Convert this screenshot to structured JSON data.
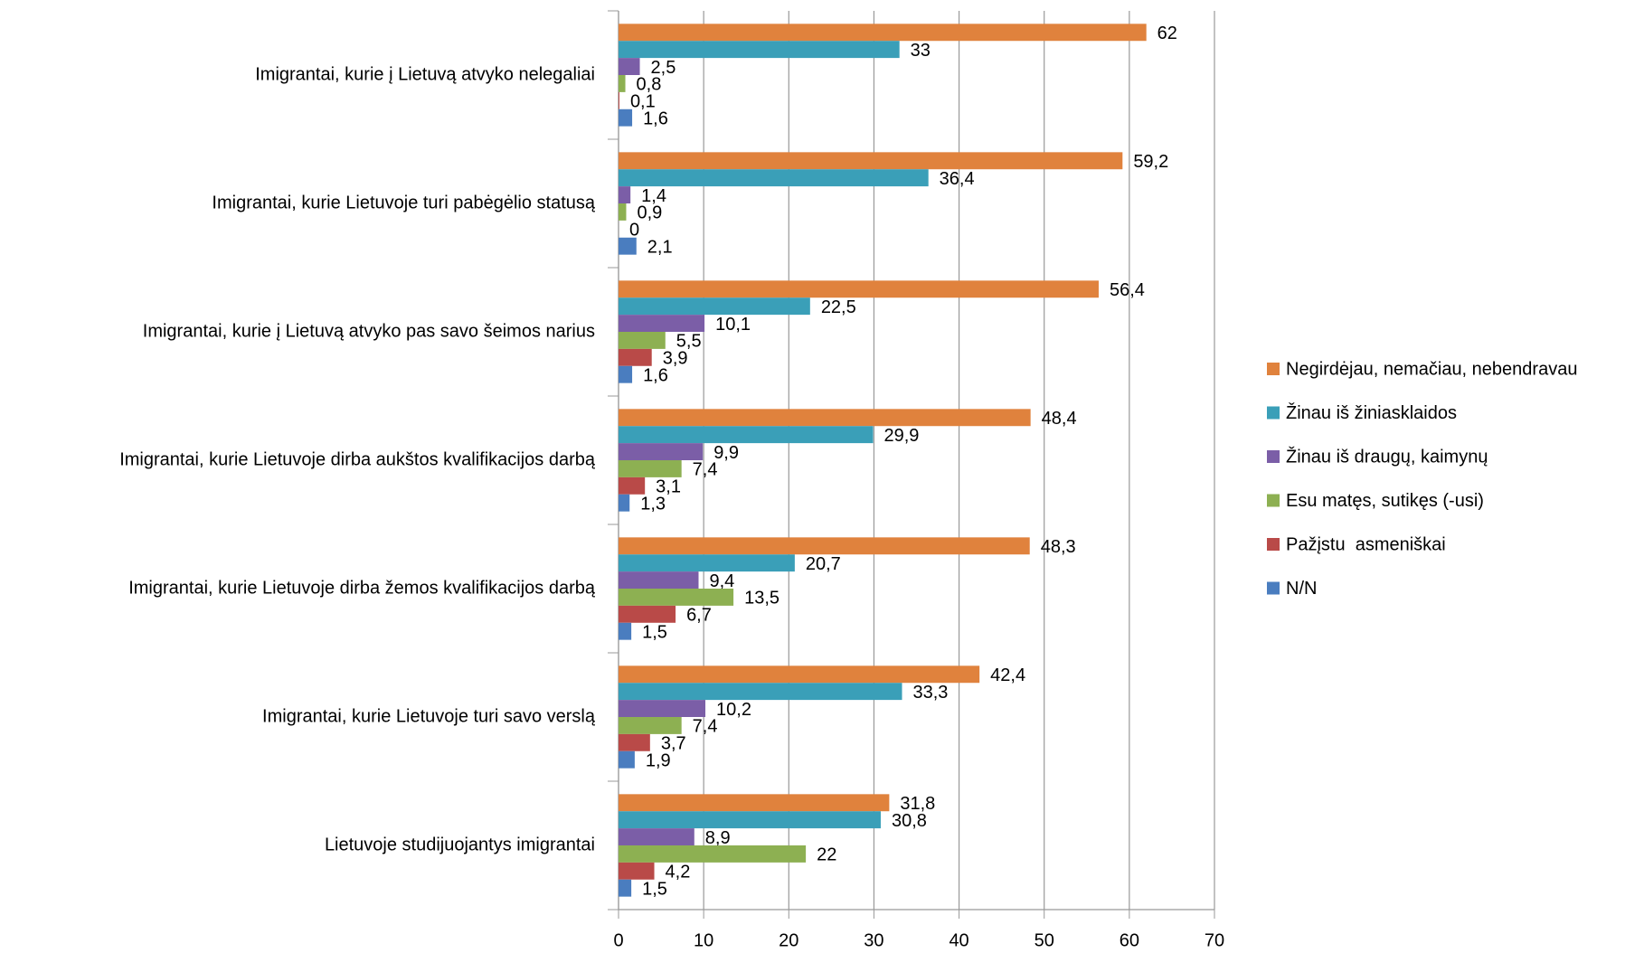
{
  "chart_data": {
    "type": "hbar",
    "categories": [
      "Imigrantai, kurie į Lietuvą atvyko nelegaliai",
      "Imigrantai, kurie Lietuvoje turi pabėgėlio statusą",
      "Imigrantai, kurie į Lietuvą atvyko pas savo šeimos narius",
      "Imigrantai, kurie Lietuvoje dirba aukštos kvalifikacijos darbą",
      "Imigrantai, kurie Lietuvoje dirba žemos kvalifikacijos darbą",
      "Imigrantai, kurie Lietuvoje turi savo verslą",
      "Lietuvoje studijuojantys imigrantai"
    ],
    "series": [
      {
        "name": "Negirdėjau, nemačiau, nebendravau",
        "color": "#e0823d",
        "values": [
          62,
          59.2,
          56.4,
          48.4,
          48.3,
          42.4,
          31.8
        ],
        "value_labels": [
          "62",
          "59,2",
          "56,4",
          "48,4",
          "48,3",
          "42,4",
          "31,8"
        ]
      },
      {
        "name": "Žinau iš žiniasklaidos",
        "color": "#3a9fb8",
        "values": [
          33,
          36.4,
          22.5,
          29.9,
          20.7,
          33.3,
          30.8
        ],
        "value_labels": [
          "33",
          "36,4",
          "22,5",
          "29,9",
          "20,7",
          "33,3",
          "30,8"
        ]
      },
      {
        "name": "Žinau iš draugų, kaimynų",
        "color": "#7b5ea7",
        "values": [
          2.5,
          1.4,
          10.1,
          9.9,
          9.4,
          10.2,
          8.9
        ],
        "value_labels": [
          "2,5",
          "1,4",
          "10,1",
          "9,9",
          "9,4",
          "10,2",
          "8,9"
        ]
      },
      {
        "name": "Esu matęs, sutikęs (-usi)",
        "color": "#8db052",
        "values": [
          0.8,
          0.9,
          5.5,
          7.4,
          13.5,
          7.4,
          22
        ],
        "value_labels": [
          "0,8",
          "0,9",
          "5,5",
          "7,4",
          "13,5",
          "7,4",
          "22"
        ]
      },
      {
        "name": "Pažįstu  asmeniškai",
        "color": "#b94a48",
        "values": [
          0.1,
          0,
          3.9,
          3.1,
          6.7,
          3.7,
          4.2
        ],
        "value_labels": [
          "0,1",
          "0",
          "3,9",
          "3,1",
          "6,7",
          "3,7",
          "4,2"
        ]
      },
      {
        "name": "N/N",
        "color": "#4a7dbf",
        "values": [
          1.6,
          2.1,
          1.6,
          1.3,
          1.5,
          1.9,
          1.5
        ],
        "value_labels": [
          "1,6",
          "2,1",
          "1,6",
          "1,3",
          "1,5",
          "1,9",
          "1,5"
        ]
      }
    ],
    "xlim": [
      0,
      70
    ],
    "xticks": [
      0,
      10,
      20,
      30,
      40,
      50,
      60,
      70
    ],
    "grid": true,
    "legend": "right"
  }
}
